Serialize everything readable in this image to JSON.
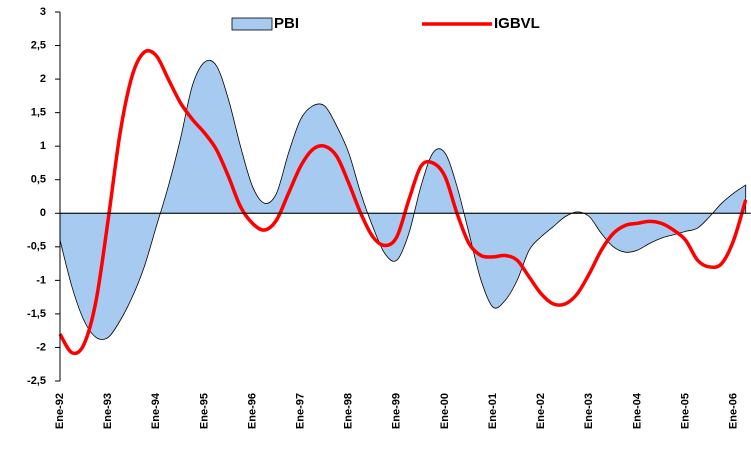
{
  "chart_data": {
    "type": "line",
    "categories": [
      "Ene-92",
      null,
      null,
      null,
      "Ene-93",
      null,
      null,
      null,
      "Ene-94",
      null,
      null,
      null,
      "Ene-95",
      null,
      null,
      null,
      "Ene-96",
      null,
      null,
      null,
      "Ene-97",
      null,
      null,
      null,
      "Ene-98",
      null,
      null,
      null,
      "Ene-99",
      null,
      null,
      null,
      "Ene-00",
      null,
      null,
      null,
      "Ene-01",
      null,
      null,
      null,
      "Ene-02",
      null,
      null,
      null,
      "Ene-03",
      null,
      null,
      null,
      "Ene-04",
      null,
      null,
      null,
      "Ene-05",
      null,
      null,
      null,
      "Ene-06",
      null
    ],
    "series": [
      {
        "name": "PBI",
        "type": "area",
        "color": "#a6caf0",
        "values": [
          -0.4,
          -1.1,
          -1.6,
          -1.85,
          -1.85,
          -1.6,
          -1.25,
          -0.8,
          -0.2,
          0.4,
          1.1,
          1.9,
          2.25,
          2.2,
          1.7,
          1.0,
          0.4,
          0.15,
          0.3,
          0.9,
          1.4,
          1.6,
          1.6,
          1.3,
          0.9,
          0.3,
          -0.2,
          -0.6,
          -0.7,
          -0.3,
          0.4,
          0.9,
          0.9,
          0.4,
          -0.3,
          -1.0,
          -1.4,
          -1.3,
          -1.0,
          -0.55,
          -0.35,
          -0.2,
          -0.05,
          0.02,
          -0.05,
          -0.3,
          -0.5,
          -0.58,
          -0.55,
          -0.45,
          -0.37,
          -0.32,
          -0.27,
          -0.22,
          -0.05,
          0.15,
          0.3,
          0.42
        ]
      },
      {
        "name": "IGBVL",
        "type": "line",
        "color": "#ff0000",
        "values": [
          -1.8,
          -2.08,
          -1.95,
          -1.3,
          -0.1,
          1.2,
          2.05,
          2.4,
          2.35,
          2.0,
          1.65,
          1.4,
          1.2,
          0.95,
          0.55,
          0.1,
          -0.15,
          -0.25,
          -0.1,
          0.3,
          0.7,
          0.95,
          1.0,
          0.85,
          0.45,
          0.0,
          -0.35,
          -0.48,
          -0.35,
          0.2,
          0.7,
          0.75,
          0.55,
          0.0,
          -0.45,
          -0.63,
          -0.65,
          -0.63,
          -0.7,
          -0.95,
          -1.2,
          -1.35,
          -1.35,
          -1.2,
          -0.9,
          -0.55,
          -0.3,
          -0.18,
          -0.15,
          -0.12,
          -0.15,
          -0.25,
          -0.4,
          -0.7,
          -0.8,
          -0.75,
          -0.4,
          0.2
        ]
      }
    ],
    "ylim": [
      -2.5,
      3
    ],
    "yticks": [
      {
        "value": -2.5,
        "label": "-2,5"
      },
      -2,
      {
        "value": -1.5,
        "label": "-1,5"
      },
      -1,
      {
        "value": -0.5,
        "label": "-0,5"
      },
      0,
      {
        "value": 0.5,
        "label": "0,5"
      },
      1,
      {
        "value": 1.5,
        "label": "1,5"
      },
      2,
      {
        "value": 2.5,
        "label": "2,5"
      },
      3
    ],
    "grid": false
  }
}
